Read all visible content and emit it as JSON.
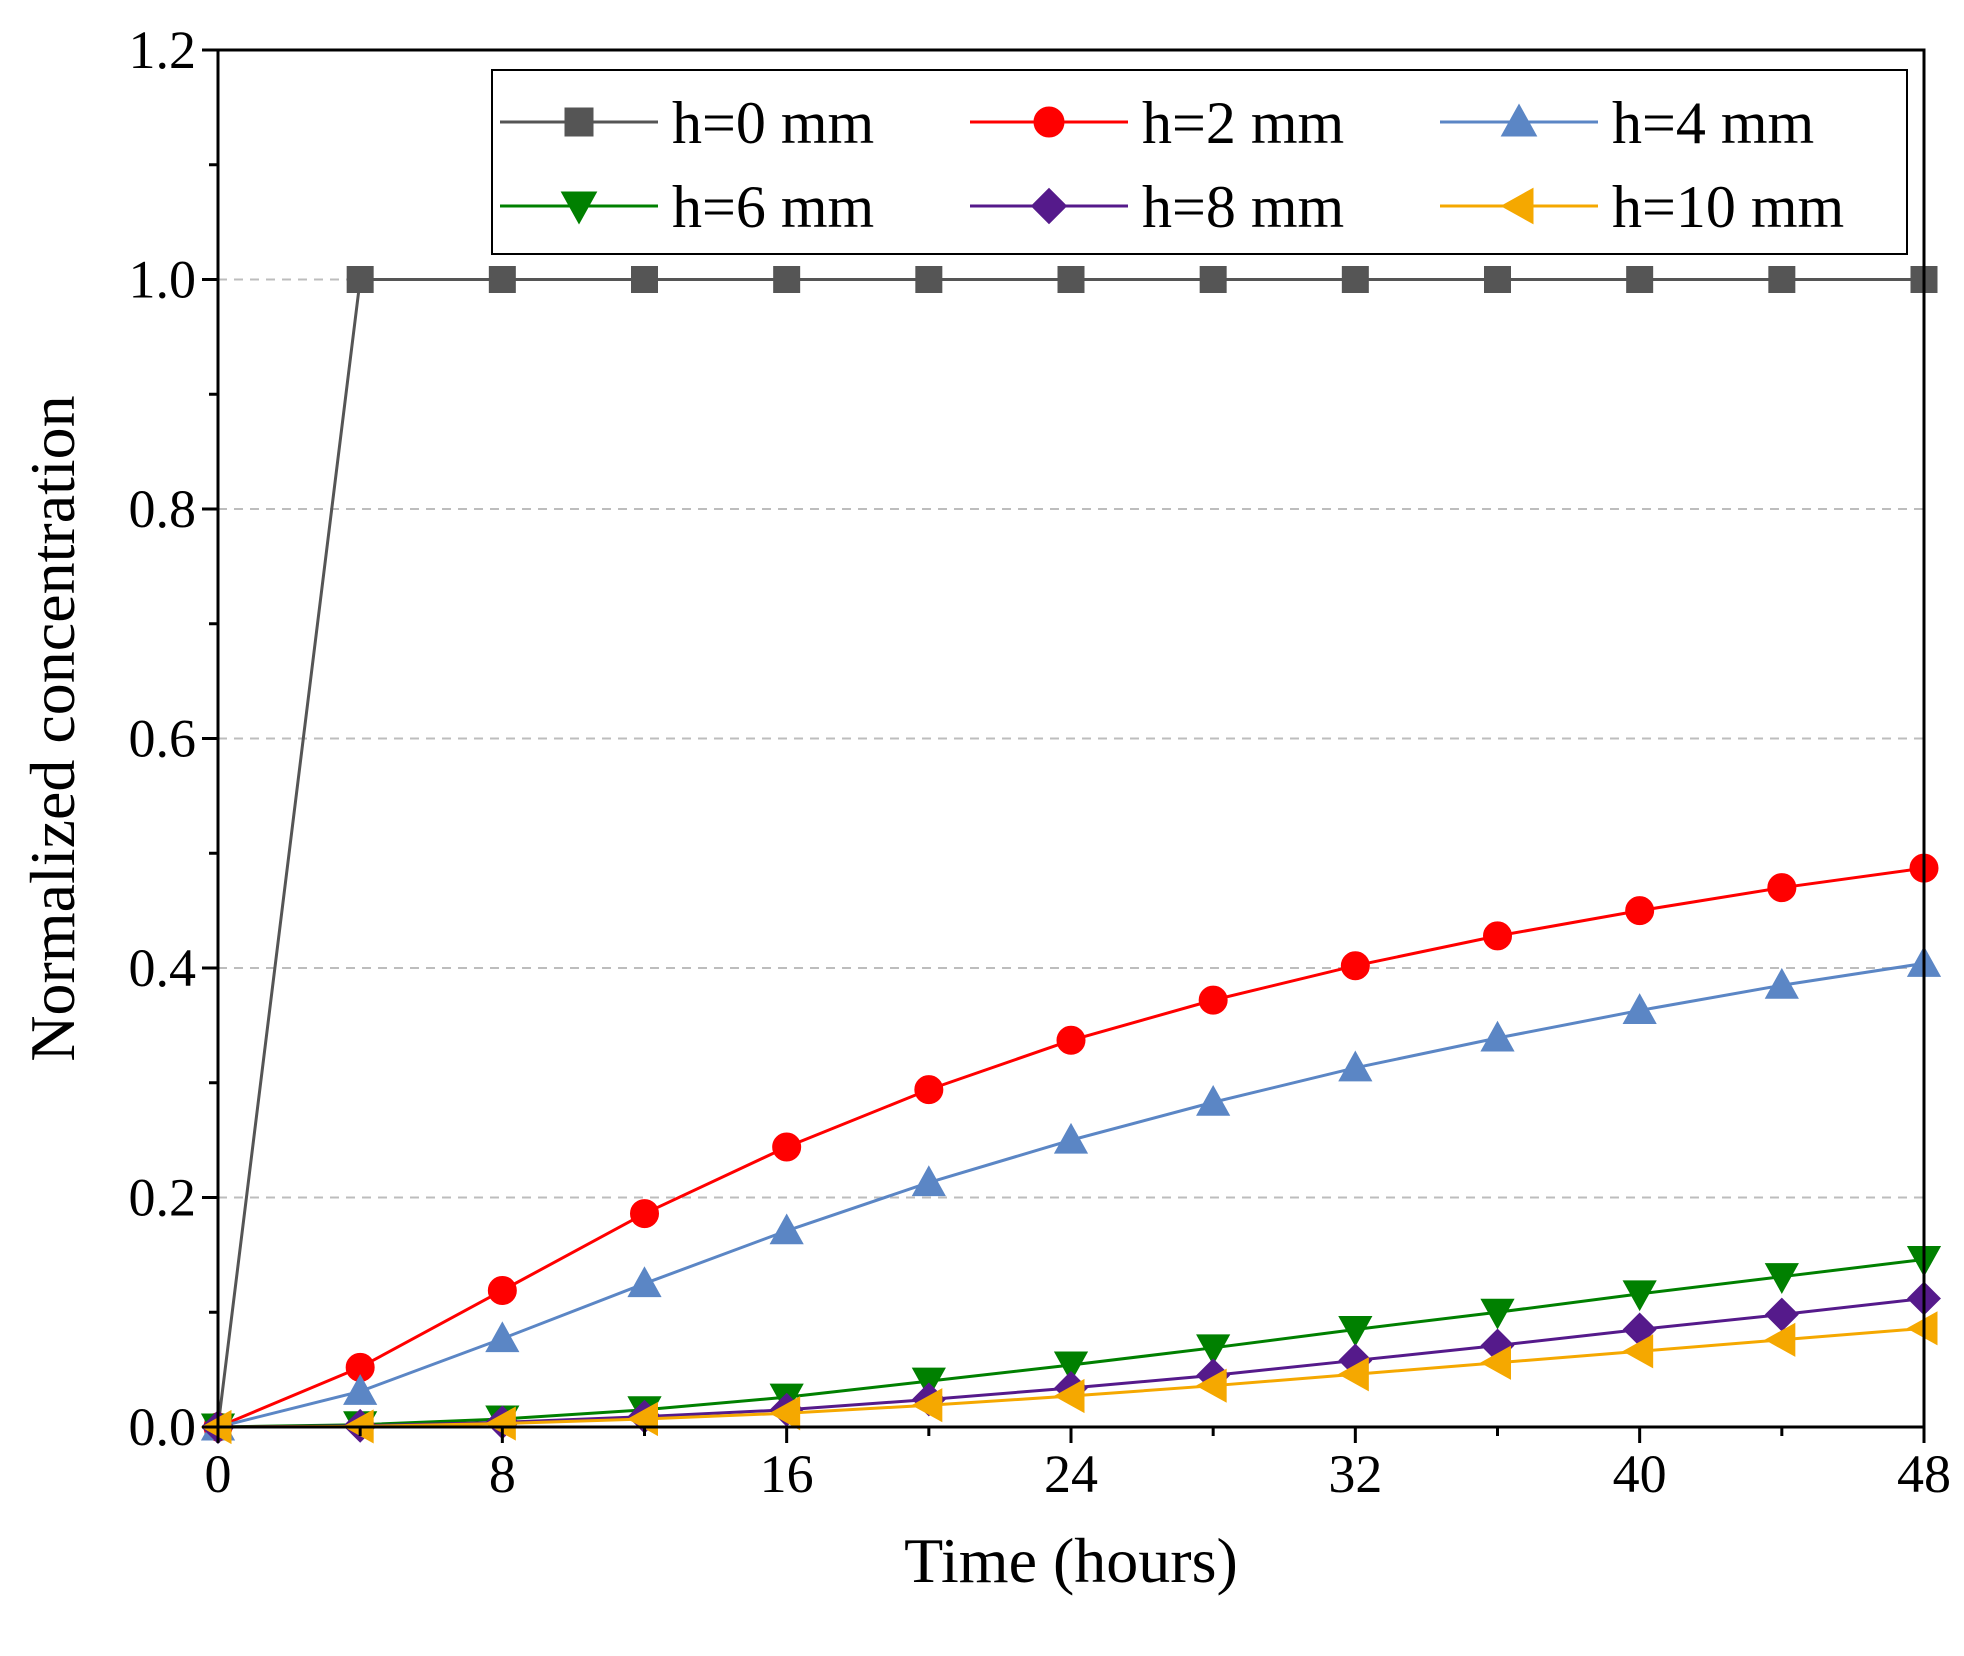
{
  "chart_data": {
    "type": "line",
    "title": "",
    "xlabel": "Time (hours)",
    "ylabel": "Normalized concentration",
    "xlim": [
      0,
      48
    ],
    "ylim": [
      0,
      1.2
    ],
    "x_ticks": [
      "0",
      "8",
      "16",
      "24",
      "32",
      "40",
      "48"
    ],
    "x_tick_values": [
      0,
      8,
      16,
      24,
      32,
      40,
      48
    ],
    "y_ticks": [
      "0.0",
      "0.2",
      "0.4",
      "0.6",
      "0.8",
      "1.0",
      "1.2"
    ],
    "y_tick_values": [
      0,
      0.2,
      0.4,
      0.6,
      0.8,
      1.0,
      1.2
    ],
    "grid": "horizontal dashed",
    "legend_position": "top-right",
    "x": [
      0,
      4,
      8,
      12,
      16,
      20,
      24,
      28,
      32,
      36,
      40,
      44,
      48
    ],
    "series": [
      {
        "name": "h=0 mm",
        "color": "#555555",
        "marker": "square",
        "values": [
          0,
          1.0,
          1.0,
          1.0,
          1.0,
          1.0,
          1.0,
          1.0,
          1.0,
          1.0,
          1.0,
          1.0,
          1.0
        ]
      },
      {
        "name": "h=2 mm",
        "color": "#ff0000",
        "marker": "circle",
        "values": [
          0,
          0.052,
          0.119,
          0.186,
          0.244,
          0.294,
          0.337,
          0.372,
          0.402,
          0.428,
          0.45,
          0.47,
          0.487
        ]
      },
      {
        "name": "h=4 mm",
        "color": "#5b86c5",
        "marker": "triangle-up",
        "values": [
          0,
          0.031,
          0.077,
          0.125,
          0.171,
          0.213,
          0.25,
          0.283,
          0.313,
          0.339,
          0.363,
          0.385,
          0.404
        ]
      },
      {
        "name": "h=6 mm",
        "color": "#008000",
        "marker": "triangle-down",
        "values": [
          0,
          0.002,
          0.007,
          0.015,
          0.026,
          0.04,
          0.054,
          0.069,
          0.085,
          0.1,
          0.116,
          0.131,
          0.146
        ]
      },
      {
        "name": "h=8 mm",
        "color": "#551a8b",
        "marker": "diamond",
        "values": [
          0,
          0.001,
          0.004,
          0.009,
          0.015,
          0.024,
          0.034,
          0.045,
          0.058,
          0.071,
          0.085,
          0.098,
          0.112
        ]
      },
      {
        "name": "h=10 mm",
        "color": "#f5a800",
        "marker": "triangle-left",
        "values": [
          0,
          0.0005,
          0.003,
          0.007,
          0.012,
          0.019,
          0.027,
          0.036,
          0.046,
          0.056,
          0.066,
          0.076,
          0.086
        ]
      }
    ]
  }
}
